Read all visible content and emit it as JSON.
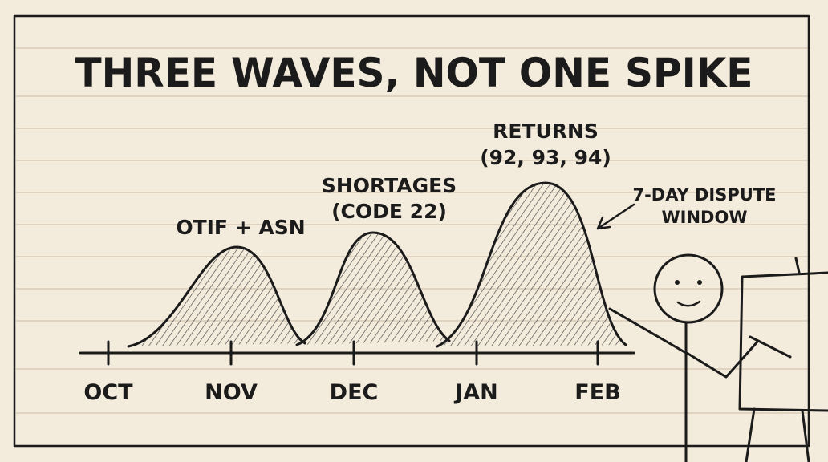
{
  "title": "THREE WAVES, NOT ONE SPIKE",
  "axis": {
    "labels": [
      "OCT",
      "NOV",
      "DEC",
      "JAN",
      "FEB"
    ]
  },
  "waves": [
    {
      "lines": [
        "OTIF + ASN"
      ]
    },
    {
      "lines": [
        "SHORTAGES",
        "(CODE 22)"
      ]
    },
    {
      "lines": [
        "RETURNS",
        "(92, 93, 94)"
      ]
    }
  ],
  "annotation": {
    "lines": [
      "7-DAY DISPUTE",
      "WINDOW"
    ]
  }
}
